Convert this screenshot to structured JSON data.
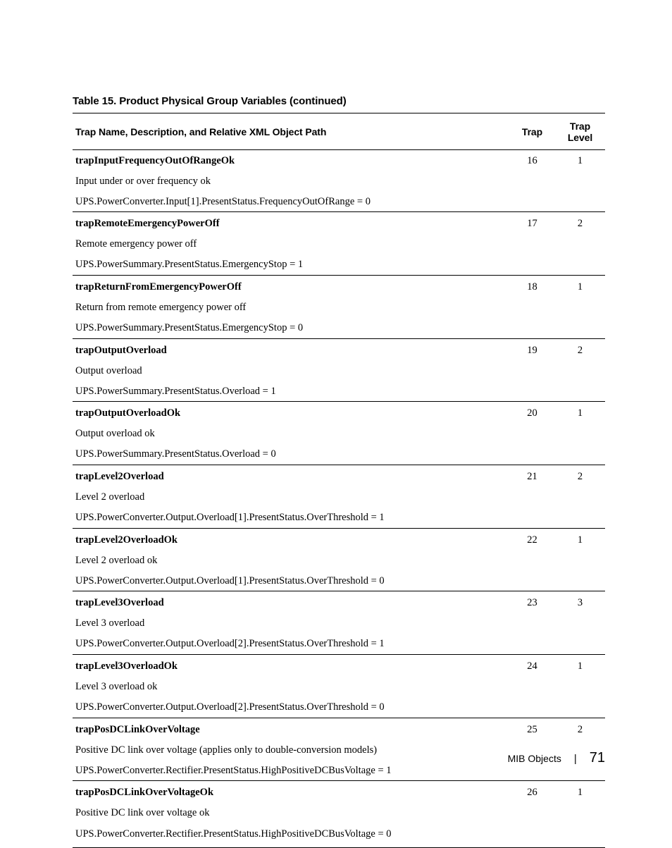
{
  "title": "Table 15. Product Physical Group Variables (continued)",
  "columns": {
    "name": "Trap Name, Description, and Relative XML Object Path",
    "trap": "Trap",
    "level": "Trap Level"
  },
  "rows": [
    {
      "name": "trapInputFrequencyOutOfRangeOk",
      "desc": "Input under or over frequency ok",
      "path": "UPS.PowerConverter.Input[1].PresentStatus.FrequencyOutOfRange = 0",
      "trap": "16",
      "level": "1"
    },
    {
      "name": "trapRemoteEmergencyPowerOff",
      "desc": "Remote emergency power off",
      "path": "UPS.PowerSummary.PresentStatus.EmergencyStop = 1",
      "trap": "17",
      "level": "2"
    },
    {
      "name": "trapReturnFromEmergencyPowerOff",
      "desc": "Return from remote emergency power off",
      "path": "UPS.PowerSummary.PresentStatus.EmergencyStop = 0",
      "trap": "18",
      "level": "1"
    },
    {
      "name": "trapOutputOverload",
      "desc": "Output overload",
      "path": "UPS.PowerSummary.PresentStatus.Overload = 1",
      "trap": "19",
      "level": "2"
    },
    {
      "name": "trapOutputOverloadOk",
      "desc": "Output overload ok",
      "path": "UPS.PowerSummary.PresentStatus.Overload = 0",
      "trap": "20",
      "level": "1"
    },
    {
      "name": "trapLevel2Overload",
      "desc": "Level 2 overload",
      "path": "UPS.PowerConverter.Output.Overload[1].PresentStatus.OverThreshold = 1",
      "trap": "21",
      "level": "2"
    },
    {
      "name": "trapLevel2OverloadOk",
      "desc": "Level 2 overload ok",
      "path": "UPS.PowerConverter.Output.Overload[1].PresentStatus.OverThreshold = 0",
      "trap": "22",
      "level": "1"
    },
    {
      "name": "trapLevel3Overload",
      "desc": "Level 3 overload",
      "path": "UPS.PowerConverter.Output.Overload[2].PresentStatus.OverThreshold = 1",
      "trap": "23",
      "level": "3"
    },
    {
      "name": "trapLevel3OverloadOk",
      "desc": "Level 3 overload ok",
      "path": "UPS.PowerConverter.Output.Overload[2].PresentStatus.OverThreshold = 0",
      "trap": "24",
      "level": "1"
    },
    {
      "name": "trapPosDCLinkOverVoltage",
      "desc": "Positive DC link over voltage (applies only to double-conversion models)",
      "path": "UPS.PowerConverter.Rectifier.PresentStatus.HighPositiveDCBusVoltage = 1",
      "trap": "25",
      "level": "2"
    },
    {
      "name": "trapPosDCLinkOverVoltageOk",
      "desc": "Positive DC link over voltage ok",
      "path": "UPS.PowerConverter.Rectifier.PresentStatus.HighPositiveDCBusVoltage = 0",
      "trap": "26",
      "level": "1"
    }
  ],
  "footer": {
    "section": "MIB Objects",
    "page": "71"
  }
}
